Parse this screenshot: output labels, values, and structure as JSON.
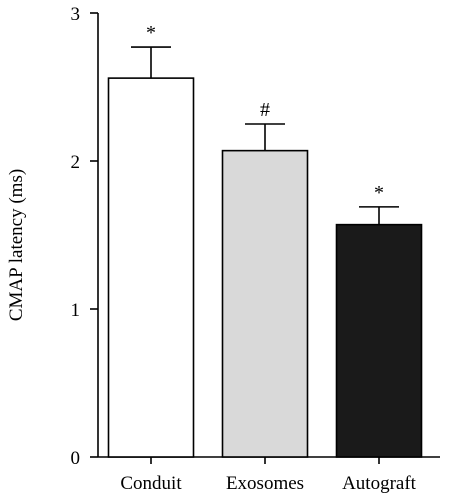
{
  "chart_data": {
    "type": "bar",
    "title": "",
    "xlabel": "",
    "ylabel": "CMAP latency (ms)",
    "ylim": [
      0,
      3
    ],
    "yticks": [
      0,
      1,
      2,
      3
    ],
    "grid": false,
    "categories": [
      "Conduit",
      "Exosomes",
      "Autograft"
    ],
    "values": [
      2.56,
      2.07,
      1.57
    ],
    "errors": [
      0.21,
      0.18,
      0.12
    ],
    "markers": [
      "*",
      "#",
      "*"
    ],
    "colors": [
      "#ffffff",
      "#d9d9d9",
      "#1a1a1a"
    ]
  }
}
